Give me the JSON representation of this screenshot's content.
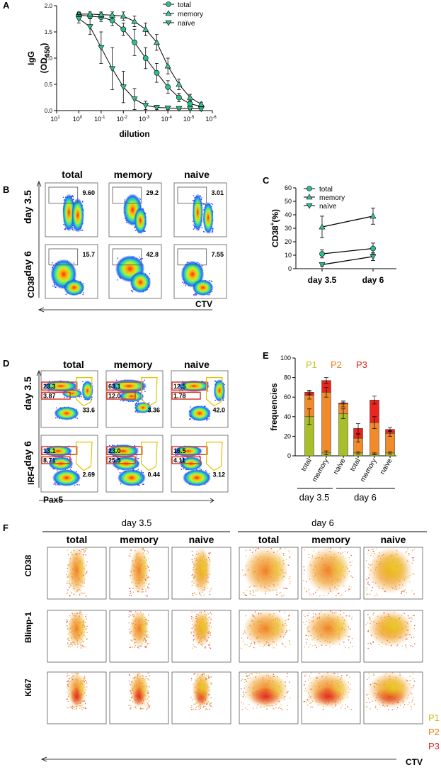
{
  "panelA": {
    "letter": "A",
    "ylabel_line1": "IgG",
    "ylabel_line2": "(OD",
    "ylabel_sub": "450",
    "ylabel_close": ")",
    "xlabel": "dilution",
    "legend": [
      "total",
      "memory",
      "naïve"
    ]
  },
  "panelB": {
    "letter": "B",
    "columns": [
      "total",
      "memory",
      "naive"
    ],
    "rows": [
      "day 3.5",
      "day 6"
    ],
    "gate_values": [
      [
        "9.60",
        "29.2",
        "3.01"
      ],
      [
        "15.7",
        "42.8",
        "7.55"
      ]
    ],
    "ylabel": "CD38",
    "xlabel": "CTV"
  },
  "panelC": {
    "letter": "C",
    "ylabel_main": "CD38",
    "ylabel_sup": "+",
    "ylabel_unit": "(%)",
    "legend": [
      "total",
      "memory",
      "naïve"
    ]
  },
  "panelD": {
    "letter": "D",
    "columns": [
      "total",
      "memory",
      "naive"
    ],
    "rows": [
      "day 3.5",
      "day 6"
    ],
    "gate_values": [
      [
        [
          "23.3",
          "3.87",
          "33.6"
        ],
        [
          "63.1",
          "12.0",
          "3.36"
        ],
        [
          "12.5",
          "1.78",
          "42.0"
        ]
      ],
      [
        [
          "13.1",
          "8.71",
          "2.69"
        ],
        [
          "23.0",
          "25.5",
          "0.44"
        ],
        [
          "16.5",
          "4.11",
          "3.12"
        ]
      ]
    ],
    "ylabel": "IRF4",
    "xlabel": "Pax5"
  },
  "panelE": {
    "letter": "E",
    "pop_labels": [
      "P1",
      "P2",
      "P3"
    ],
    "group_labels": [
      "day 3.5",
      "day 6"
    ]
  },
  "panelF": {
    "letter": "F",
    "groups": [
      "day 3.5",
      "day 6"
    ],
    "columns": [
      "total",
      "memory",
      "naive",
      "total",
      "memory",
      "naive"
    ],
    "row_labels": [
      "CD38",
      "Blimp-1",
      "Ki67"
    ],
    "xlabel": "CTV",
    "pop_labels": [
      "P1",
      "P2",
      "P3"
    ]
  },
  "colors": {
    "total": "#2bbf8a",
    "memory": "#39c98f",
    "naive": "#2bbf8a",
    "P1": "#c9c21a",
    "P2": "#f07a1a",
    "P3": "#e0201a",
    "bar_P1": "#a9bf2a",
    "bar_P2": "#f08a2a",
    "bar_P3": "#e8251e",
    "gate_red": "#d83a2a",
    "gate_yellow": "#e0c400"
  },
  "chart_data": [
    {
      "id": "A",
      "type": "line",
      "title": "",
      "xlabel": "dilution",
      "ylabel": "IgG (OD450)",
      "xscale": "log-reversed",
      "xticks_exp": [
        1,
        0,
        -1,
        -2,
        -3,
        -4,
        -5,
        -6
      ],
      "xlim_exp": [
        1,
        -6
      ],
      "ylim": [
        0,
        2.0
      ],
      "yticks": [
        0.0,
        0.5,
        1.0,
        1.5,
        2.0
      ],
      "series": [
        {
          "name": "total",
          "marker": "circle",
          "x_exp": [
            0,
            -0.5,
            -1,
            -1.5,
            -2,
            -2.5,
            -3,
            -3.5,
            -4,
            -4.5,
            -5,
            -5.5
          ],
          "y": [
            1.82,
            1.8,
            1.78,
            1.72,
            1.55,
            1.3,
            1.0,
            0.72,
            0.45,
            0.25,
            0.13,
            0.08
          ],
          "err": [
            0.05,
            0.05,
            0.08,
            0.1,
            0.12,
            0.25,
            0.2,
            0.18,
            0.12,
            0.08,
            0.05,
            0.03
          ]
        },
        {
          "name": "memory",
          "marker": "triangle-up",
          "x_exp": [
            0,
            -0.5,
            -1,
            -1.5,
            -2,
            -2.5,
            -3,
            -3.5,
            -4,
            -4.5,
            -5,
            -5.5
          ],
          "y": [
            1.84,
            1.84,
            1.83,
            1.82,
            1.8,
            1.7,
            1.55,
            1.3,
            0.85,
            0.5,
            0.25,
            0.12
          ],
          "err": [
            0.04,
            0.04,
            0.05,
            0.06,
            0.08,
            0.1,
            0.12,
            0.15,
            0.15,
            0.1,
            0.06,
            0.04
          ]
        },
        {
          "name": "naïve",
          "marker": "triangle-down",
          "x_exp": [
            0,
            -0.5,
            -1,
            -1.5,
            -2,
            -2.5,
            -3,
            -3.5,
            -4,
            -4.5,
            -5,
            -5.5
          ],
          "y": [
            1.75,
            1.6,
            1.2,
            0.8,
            0.45,
            0.22,
            0.1,
            0.06,
            0.05,
            0.04,
            0.04,
            0.03
          ],
          "err": [
            0.08,
            0.15,
            0.3,
            0.4,
            0.3,
            0.2,
            0.08,
            0.04,
            0.03,
            0.02,
            0.02,
            0.02
          ]
        }
      ]
    },
    {
      "id": "C",
      "type": "line",
      "categories": [
        "day 3.5",
        "day 6"
      ],
      "ylabel": "CD38+(%)",
      "ylim": [
        0,
        60
      ],
      "yticks": [
        0,
        10,
        20,
        30,
        40,
        50,
        60
      ],
      "series": [
        {
          "name": "total",
          "marker": "circle",
          "values": [
            11,
            15
          ],
          "err": [
            3,
            4
          ]
        },
        {
          "name": "memory",
          "marker": "triangle-up",
          "values": [
            31,
            39
          ],
          "err": [
            8,
            6
          ]
        },
        {
          "name": "naïve",
          "marker": "triangle-down",
          "values": [
            3,
            9
          ],
          "err": [
            1,
            3
          ]
        }
      ]
    },
    {
      "id": "E",
      "type": "bar",
      "stacked": true,
      "ylabel": "frequencies",
      "ylim": [
        0,
        100
      ],
      "yticks": [
        0,
        20,
        40,
        60,
        80,
        100
      ],
      "categories": [
        "total",
        "memory",
        "naive",
        "total",
        "memory",
        "naive"
      ],
      "groups": [
        {
          "label": "day 3.5",
          "indices": [
            0,
            1,
            2
          ]
        },
        {
          "label": "day 6",
          "indices": [
            3,
            4,
            5
          ]
        }
      ],
      "series": [
        {
          "name": "P1",
          "values": [
            40,
            3,
            43,
            3,
            2,
            3
          ],
          "err": [
            8,
            2,
            5,
            1,
            1,
            1
          ]
        },
        {
          "name": "P2",
          "values": [
            22,
            62,
            10,
            15,
            32,
            20
          ],
          "err": [
            4,
            5,
            3,
            4,
            6,
            3
          ]
        },
        {
          "name": "P3",
          "values": [
            3,
            12,
            1,
            10,
            23,
            4
          ],
          "err": [
            2,
            3,
            1,
            5,
            4,
            2
          ]
        }
      ]
    }
  ]
}
